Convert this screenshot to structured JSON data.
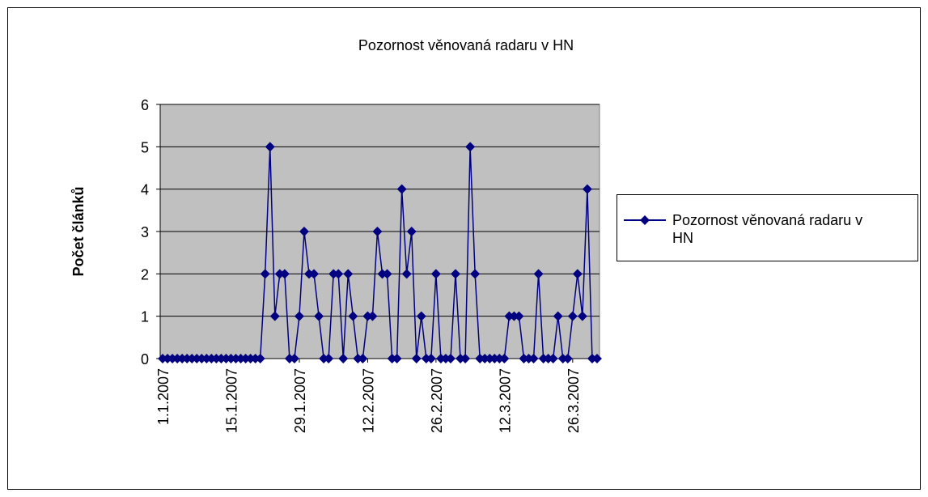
{
  "chart_data": {
    "type": "line",
    "title": "Pozornost věnovaná radaru v HN",
    "ylabel": "Počet článků",
    "categories": [
      "1.1.2007",
      null,
      null,
      null,
      null,
      null,
      null,
      null,
      null,
      null,
      null,
      null,
      null,
      null,
      "15.1.2007",
      null,
      null,
      null,
      null,
      null,
      null,
      null,
      null,
      null,
      null,
      null,
      null,
      null,
      "29.1.2007",
      null,
      null,
      null,
      null,
      null,
      null,
      null,
      null,
      null,
      null,
      null,
      null,
      null,
      "12.2.2007",
      null,
      null,
      null,
      null,
      null,
      null,
      null,
      null,
      null,
      null,
      null,
      null,
      null,
      "26.2.2007",
      null,
      null,
      null,
      null,
      null,
      null,
      null,
      null,
      null,
      null,
      null,
      null,
      null,
      "12.3.2007",
      null,
      null,
      null,
      null,
      null,
      null,
      null,
      null,
      null,
      null,
      null,
      null,
      null,
      "26.3.2007",
      null,
      null,
      null,
      null,
      null
    ],
    "series": [
      {
        "name": "Pozornost věnovaná radaru v HN",
        "color": "#000080",
        "values": [
          0,
          0,
          0,
          0,
          0,
          0,
          0,
          0,
          0,
          0,
          0,
          0,
          0,
          0,
          0,
          0,
          0,
          0,
          0,
          0,
          0,
          2,
          5,
          1,
          2,
          2,
          0,
          0,
          1,
          3,
          2,
          2,
          1,
          0,
          0,
          2,
          2,
          0,
          2,
          1,
          0,
          0,
          1,
          1,
          3,
          2,
          2,
          0,
          0,
          4,
          2,
          3,
          0,
          1,
          0,
          0,
          2,
          0,
          0,
          0,
          2,
          0,
          0,
          5,
          2,
          0,
          0,
          0,
          0,
          0,
          0,
          1,
          1,
          1,
          0,
          0,
          0,
          2,
          0,
          0,
          0,
          1,
          0,
          0,
          1,
          2,
          1,
          4,
          0,
          0
        ]
      }
    ],
    "ylim": [
      0,
      6
    ],
    "yticks": [
      0,
      1,
      2,
      3,
      4,
      5,
      6
    ],
    "grid": true,
    "legend": "right"
  }
}
